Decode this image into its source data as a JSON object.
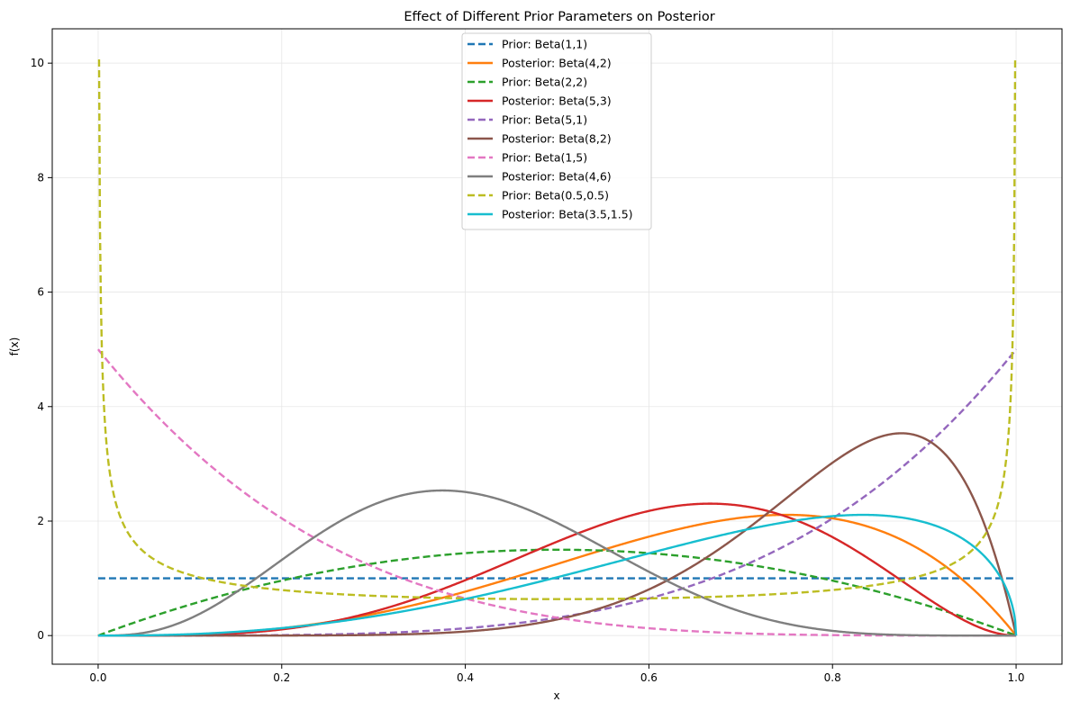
{
  "chart_data": {
    "type": "line",
    "title": "Effect of Different Prior Parameters on Posterior",
    "xlabel": "x",
    "ylabel": "f(x)",
    "xlim": [
      -0.05,
      1.05
    ],
    "ylim": [
      -0.5,
      10.6
    ],
    "xticks": [
      0.0,
      0.2,
      0.4,
      0.6,
      0.8,
      1.0
    ],
    "yticks": [
      0,
      2,
      4,
      6,
      8,
      10
    ],
    "xtick_labels": [
      "0.0",
      "0.2",
      "0.4",
      "0.6",
      "0.8",
      "1.0"
    ],
    "ytick_labels": [
      "0",
      "2",
      "4",
      "6",
      "8",
      "10"
    ],
    "grid": true,
    "legend_position": "top-center",
    "x_range": [
      0.0,
      1.0
    ],
    "series": [
      {
        "name": "Prior: Beta(1,1)",
        "alpha": 1,
        "beta": 1,
        "style": "dashed",
        "color": "#1f77b4"
      },
      {
        "name": "Posterior: Beta(4,2)",
        "alpha": 4,
        "beta": 2,
        "style": "solid",
        "color": "#ff7f0e"
      },
      {
        "name": "Prior: Beta(2,2)",
        "alpha": 2,
        "beta": 2,
        "style": "dashed",
        "color": "#2ca02c"
      },
      {
        "name": "Posterior: Beta(5,3)",
        "alpha": 5,
        "beta": 3,
        "style": "solid",
        "color": "#d62728"
      },
      {
        "name": "Prior: Beta(5,1)",
        "alpha": 5,
        "beta": 1,
        "style": "dashed",
        "color": "#9467bd"
      },
      {
        "name": "Posterior: Beta(8,2)",
        "alpha": 8,
        "beta": 2,
        "style": "solid",
        "color": "#8c564b"
      },
      {
        "name": "Prior: Beta(1,5)",
        "alpha": 1,
        "beta": 5,
        "style": "dashed",
        "color": "#e377c2"
      },
      {
        "name": "Posterior: Beta(4,6)",
        "alpha": 4,
        "beta": 6,
        "style": "solid",
        "color": "#7f7f7f"
      },
      {
        "name": "Prior: Beta(0.5,0.5)",
        "alpha": 0.5,
        "beta": 0.5,
        "style": "dashed",
        "color": "#bcbd22"
      },
      {
        "name": "Posterior: Beta(3.5,1.5)",
        "alpha": 3.5,
        "beta": 1.5,
        "style": "solid",
        "color": "#17becf"
      }
    ]
  }
}
